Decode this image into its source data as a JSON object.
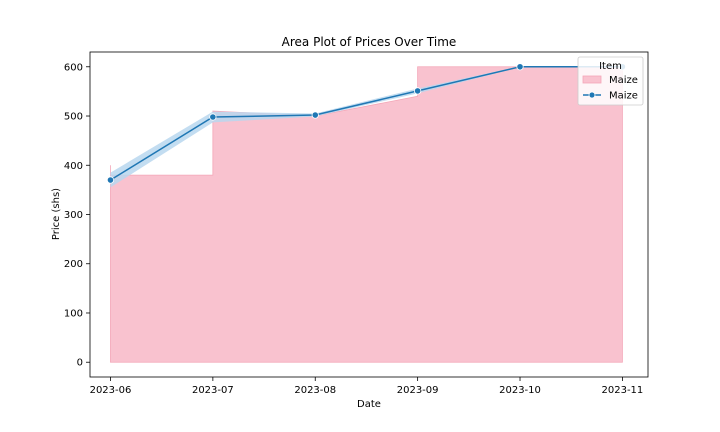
{
  "chart_data": {
    "type": "area",
    "title": "Area Plot of Prices Over Time",
    "xlabel": "Date",
    "ylabel": "Price (shs)",
    "x_ticks": [
      "2023-06",
      "2023-07",
      "2023-08",
      "2023-09",
      "2023-10",
      "2023-11"
    ],
    "y_ticks": [
      0,
      100,
      200,
      300,
      400,
      500,
      600
    ],
    "ylim": [
      -30,
      630
    ],
    "xlim_months": [
      -0.2,
      5.25
    ],
    "grid": false,
    "legend": {
      "title": "Item",
      "placement": "top-right",
      "entries": [
        "Maize",
        "Maize"
      ]
    },
    "area_series": {
      "name": "Maize",
      "color": "#f9c2cf",
      "edge_color": "#f4a6b7",
      "x": [
        "2023-06",
        "2023-06",
        "2023-07",
        "2023-07",
        "2023-08",
        "2023-09",
        "2023-09",
        "2023-10",
        "2023-11"
      ],
      "y": [
        400,
        380,
        380,
        510,
        500,
        540,
        600,
        600,
        600
      ],
      "base": 0
    },
    "line_series": {
      "name": "Maize",
      "color": "#1f77b4",
      "band_color": "#b9d7ee",
      "x": [
        "2023-06",
        "2023-07",
        "2023-08",
        "2023-09",
        "2023-10",
        "2023-11"
      ],
      "y": [
        370,
        498,
        502,
        551,
        600,
        600
      ],
      "ci_low": [
        355,
        487,
        499,
        546,
        599,
        599
      ],
      "ci_high": [
        385,
        509,
        505,
        556,
        601,
        601
      ]
    }
  }
}
